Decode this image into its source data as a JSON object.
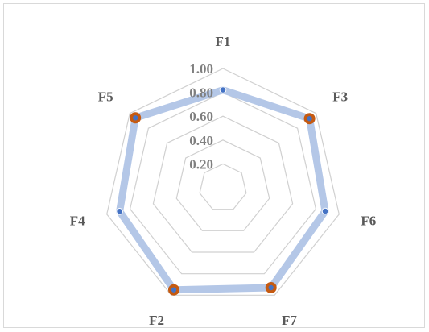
{
  "chart_data": {
    "type": "radar",
    "categories": [
      "F1",
      "F3",
      "F6",
      "F7",
      "F2",
      "F4",
      "F5"
    ],
    "rlim": [
      0,
      1.0
    ],
    "ticks": [
      "0.20",
      "0.40",
      "0.60",
      "0.80",
      "1.00"
    ],
    "tick_values": [
      0.2,
      0.4,
      0.6,
      0.8,
      1.0
    ],
    "series": [
      {
        "values": [
          0.82,
          0.93,
          0.88,
          0.93,
          0.95,
          0.89,
          0.94
        ],
        "highlighted": [
          false,
          true,
          false,
          true,
          true,
          false,
          true
        ]
      }
    ],
    "legend": false,
    "grid": true,
    "colors": {
      "line": "#b4c7e7",
      "marker": "#4472c4",
      "highlight": "#c55a11",
      "grid": "#d0d0d0"
    }
  }
}
